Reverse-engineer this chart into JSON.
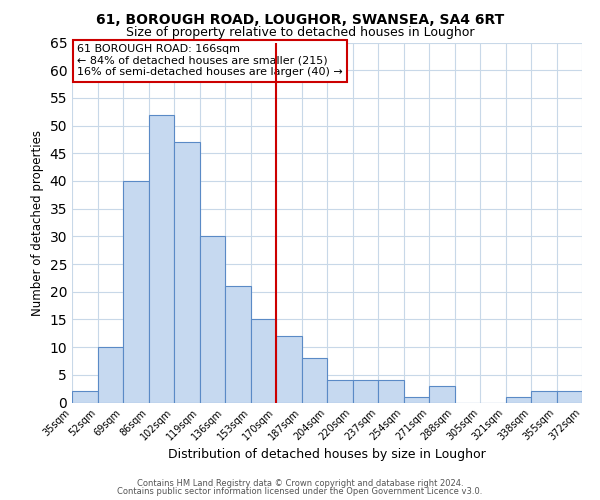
{
  "title": "61, BOROUGH ROAD, LOUGHOR, SWANSEA, SA4 6RT",
  "subtitle": "Size of property relative to detached houses in Loughor",
  "xlabel": "Distribution of detached houses by size in Loughor",
  "ylabel": "Number of detached properties",
  "bin_labels": [
    "35sqm",
    "52sqm",
    "69sqm",
    "86sqm",
    "102sqm",
    "119sqm",
    "136sqm",
    "153sqm",
    "170sqm",
    "187sqm",
    "204sqm",
    "220sqm",
    "237sqm",
    "254sqm",
    "271sqm",
    "288sqm",
    "305sqm",
    "321sqm",
    "338sqm",
    "355sqm",
    "372sqm"
  ],
  "bar_values": [
    2,
    10,
    40,
    52,
    47,
    30,
    21,
    15,
    12,
    8,
    4,
    4,
    4,
    1,
    3,
    0,
    0,
    1,
    2,
    2
  ],
  "bar_color": "#c6d9f0",
  "bar_edge_color": "#5a8ac6",
  "vline_color": "#cc0000",
  "ylim": [
    0,
    65
  ],
  "yticks": [
    0,
    5,
    10,
    15,
    20,
    25,
    30,
    35,
    40,
    45,
    50,
    55,
    60,
    65
  ],
  "annotation_title": "61 BOROUGH ROAD: 166sqm",
  "annotation_line1": "← 84% of detached houses are smaller (215)",
  "annotation_line2": "16% of semi-detached houses are larger (40) →",
  "annotation_box_color": "#ffffff",
  "annotation_box_edge_color": "#cc0000",
  "footer_line1": "Contains HM Land Registry data © Crown copyright and database right 2024.",
  "footer_line2": "Contains public sector information licensed under the Open Government Licence v3.0.",
  "background_color": "#ffffff",
  "grid_color": "#c8d8e8",
  "title_fontsize": 10,
  "subtitle_fontsize": 9
}
